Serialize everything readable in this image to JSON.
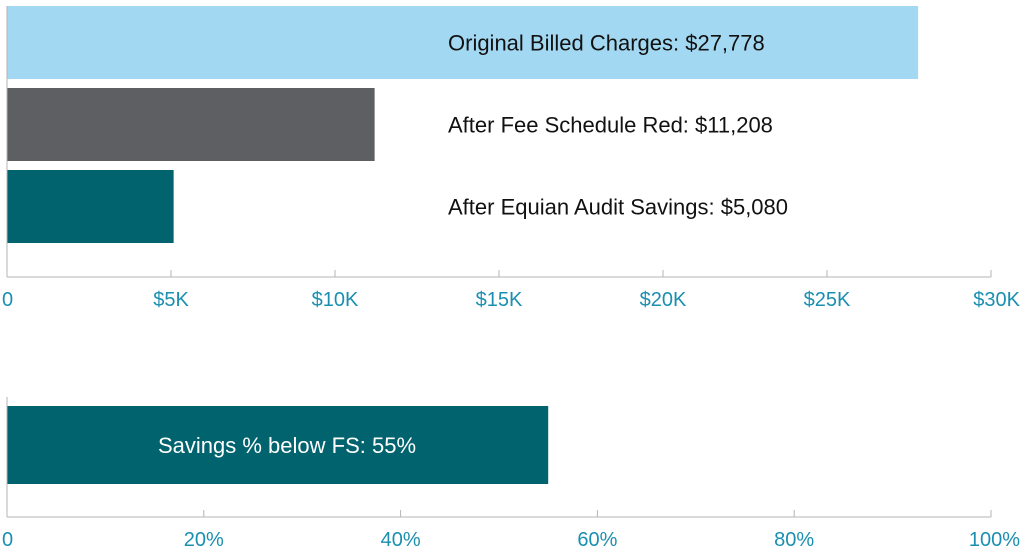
{
  "colors": {
    "axis": "#b4b4b4",
    "tick_text": "#1a8fb0",
    "label_dark": "#111111",
    "label_light": "#ffffff"
  },
  "chart_data": [
    {
      "type": "bar",
      "orientation": "horizontal",
      "xlim": [
        0,
        30000
      ],
      "ticks": [
        {
          "value": 0,
          "label": "0"
        },
        {
          "value": 5000,
          "label": "$5K"
        },
        {
          "value": 10000,
          "label": "$10K"
        },
        {
          "value": 15000,
          "label": "$15K"
        },
        {
          "value": 20000,
          "label": "$20K"
        },
        {
          "value": 25000,
          "label": "$25K"
        },
        {
          "value": 30000,
          "label": "$30K"
        }
      ],
      "bars": [
        {
          "value": 27778,
          "label": "Original Billed Charges: $27,778",
          "color": "#a3d8f2"
        },
        {
          "value": 11208,
          "label": "After Fee Schedule Red: $11,208",
          "color": "#5e5f62"
        },
        {
          "value": 5080,
          "label": "After Equian Audit Savings: $5,080",
          "color": "#00636e"
        }
      ],
      "grid": false
    },
    {
      "type": "bar",
      "orientation": "horizontal",
      "xlim": [
        0,
        100
      ],
      "ticks": [
        {
          "value": 0,
          "label": "0"
        },
        {
          "value": 20,
          "label": "20%"
        },
        {
          "value": 40,
          "label": "40%"
        },
        {
          "value": 60,
          "label": "60%"
        },
        {
          "value": 80,
          "label": "80%"
        },
        {
          "value": 100,
          "label": "100%"
        }
      ],
      "bars": [
        {
          "value": 55,
          "label": "Savings % below FS: 55%",
          "color": "#00636e"
        }
      ],
      "grid": false
    }
  ]
}
